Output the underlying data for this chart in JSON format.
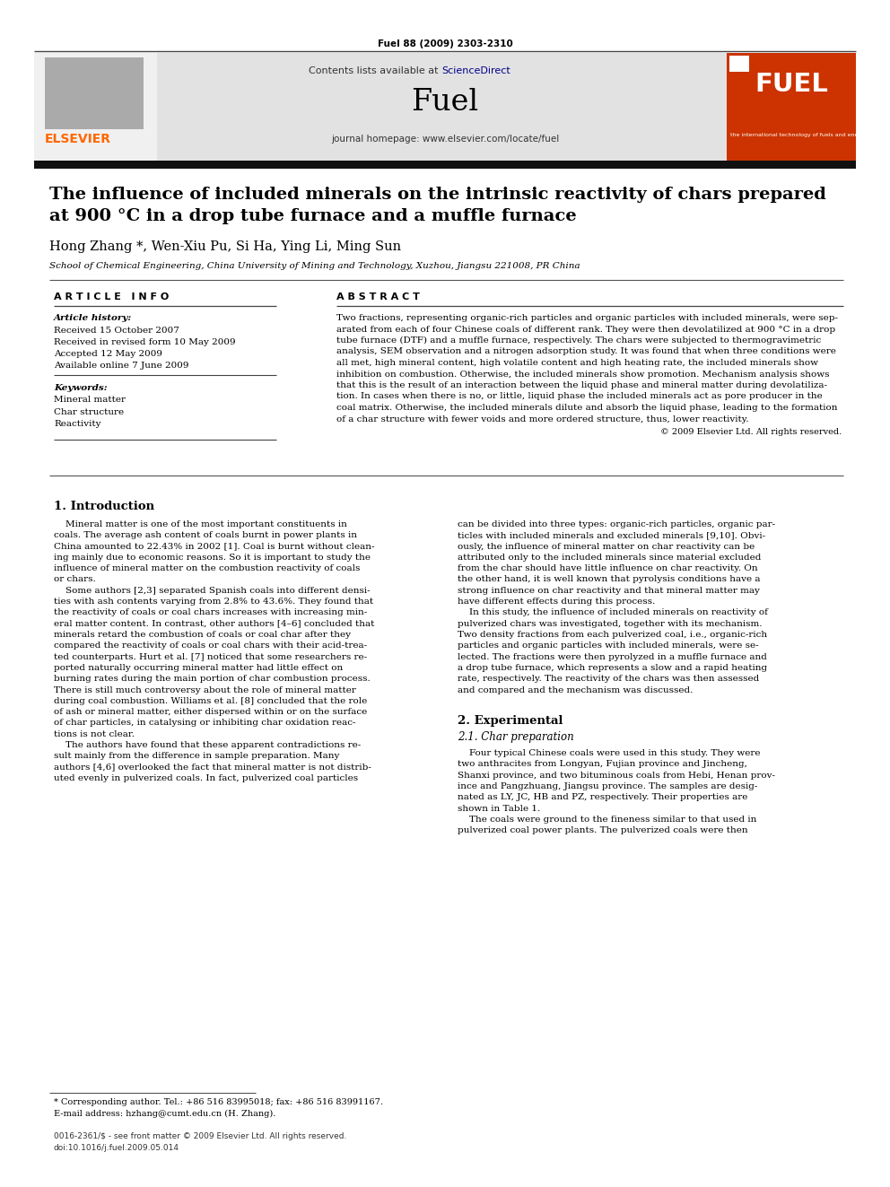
{
  "journal_ref": "Fuel 88 (2009) 2303-2310",
  "sciencedirect_color": "#1a3a8a",
  "journal_name": "Fuel",
  "journal_homepage": "journal homepage: www.elsevier.com/locate/fuel",
  "elsevier_color": "#FF6600",
  "title_line1": "The influence of included minerals on the intrinsic reactivity of chars prepared",
  "title_line2": "at 900 °C in a drop tube furnace and a muffle furnace",
  "authors": "Hong Zhang *, Wen-Xiu Pu, Si Ha, Ying Li, Ming Sun",
  "affiliation": "School of Chemical Engineering, China University of Mining and Technology, Xuzhou, Jiangsu 221008, PR China",
  "article_info_header": "A R T I C L E   I N F O",
  "abstract_header": "A B S T R A C T",
  "article_history_label": "Article history:",
  "received": "Received 15 October 2007",
  "received_revised": "Received in revised form 10 May 2009",
  "accepted": "Accepted 12 May 2009",
  "available": "Available online 7 June 2009",
  "keywords_label": "Keywords:",
  "keywords": [
    "Mineral matter",
    "Char structure",
    "Reactivity"
  ],
  "abstract_lines": [
    "Two fractions, representing organic-rich particles and organic particles with included minerals, were sep-",
    "arated from each of four Chinese coals of different rank. They were then devolatilized at 900 °C in a drop",
    "tube furnace (DTF) and a muffle furnace, respectively. The chars were subjected to thermogravimetric",
    "analysis, SEM observation and a nitrogen adsorption study. It was found that when three conditions were",
    "all met, high mineral content, high volatile content and high heating rate, the included minerals show",
    "inhibition on combustion. Otherwise, the included minerals show promotion. Mechanism analysis shows",
    "that this is the result of an interaction between the liquid phase and mineral matter during devolatiliza-",
    "tion. In cases when there is no, or little, liquid phase the included minerals act as pore producer in the",
    "coal matrix. Otherwise, the included minerals dilute and absorb the liquid phase, leading to the formation",
    "of a char structure with fewer voids and more ordered structure, thus, lower reactivity."
  ],
  "copyright": "© 2009 Elsevier Ltd. All rights reserved.",
  "section1_title": "1. Introduction",
  "intro_left_lines": [
    "    Mineral matter is one of the most important constituents in",
    "coals. The average ash content of coals burnt in power plants in",
    "China amounted to 22.43% in 2002 [1]. Coal is burnt without clean-",
    "ing mainly due to economic reasons. So it is important to study the",
    "influence of mineral matter on the combustion reactivity of coals",
    "or chars.",
    "    Some authors [2,3] separated Spanish coals into different densi-",
    "ties with ash contents varying from 2.8% to 43.6%. They found that",
    "the reactivity of coals or coal chars increases with increasing min-",
    "eral matter content. In contrast, other authors [4–6] concluded that",
    "minerals retard the combustion of coals or coal char after they",
    "compared the reactivity of coals or coal chars with their acid-trea-",
    "ted counterparts. Hurt et al. [7] noticed that some researchers re-",
    "ported naturally occurring mineral matter had little effect on",
    "burning rates during the main portion of char combustion process.",
    "There is still much controversy about the role of mineral matter",
    "during coal combustion. Williams et al. [8] concluded that the role",
    "of ash or mineral matter, either dispersed within or on the surface",
    "of char particles, in catalysing or inhibiting char oxidation reac-",
    "tions is not clear.",
    "    The authors have found that these apparent contradictions re-",
    "sult mainly from the difference in sample preparation. Many",
    "authors [4,6] overlooked the fact that mineral matter is not distrib-",
    "uted evenly in pulverized coals. In fact, pulverized coal particles"
  ],
  "intro_right_lines": [
    "can be divided into three types: organic-rich particles, organic par-",
    "ticles with included minerals and excluded minerals [9,10]. Obvi-",
    "ously, the influence of mineral matter on char reactivity can be",
    "attributed only to the included minerals since material excluded",
    "from the char should have little influence on char reactivity. On",
    "the other hand, it is well known that pyrolysis conditions have a",
    "strong influence on char reactivity and that mineral matter may",
    "have different effects during this process.",
    "    In this study, the influence of included minerals on reactivity of",
    "pulverized chars was investigated, together with its mechanism.",
    "Two density fractions from each pulverized coal, i.e., organic-rich",
    "particles and organic particles with included minerals, were se-",
    "lected. The fractions were then pyrolyzed in a muffle furnace and",
    "a drop tube furnace, which represents a slow and a rapid heating",
    "rate, respectively. The reactivity of the chars was then assessed",
    "and compared and the mechanism was discussed."
  ],
  "section2_title": "2. Experimental",
  "section21_title": "2.1. Char preparation",
  "char_prep_lines": [
    "    Four typical Chinese coals were used in this study. They were",
    "two anthracites from Longyan, Fujian province and Jincheng,",
    "Shanxi province, and two bituminous coals from Hebi, Henan prov-",
    "ince and Pangzhuang, Jiangsu province. The samples are desig-",
    "nated as LY, JC, HB and PZ, respectively. Their properties are",
    "shown in Table 1.",
    "    The coals were ground to the fineness similar to that used in",
    "pulverized coal power plants. The pulverized coals were then"
  ],
  "footnote1": "* Corresponding author. Tel.: +86 516 83995018; fax: +86 516 83991167.",
  "footnote2": "E-mail address: hzhang@cumt.edu.cn (H. Zhang).",
  "footer1": "0016-2361/$ - see front matter © 2009 Elsevier Ltd. All rights reserved.",
  "footer2": "doi:10.1016/j.fuel.2009.05.014",
  "bg_color": "#ffffff",
  "header_bg": "#e2e2e2",
  "dark_bar_color": "#111111",
  "text_color": "#000000",
  "link_color": "#00008B",
  "orange": "#FF6600",
  "fuel_red": "#cc3300"
}
